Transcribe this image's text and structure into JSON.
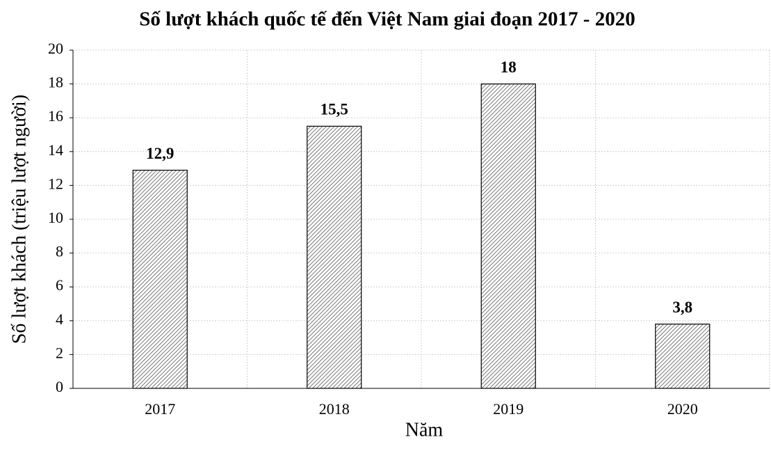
{
  "chart_data": {
    "type": "bar",
    "title": "Số lượt khách quốc tế đến Việt Nam giai đoạn 2017 - 2020",
    "x_label": "Năm",
    "y_label": "Số lượt khách (triệu lượt người)",
    "categories": [
      "2017",
      "2018",
      "2019",
      "2020"
    ],
    "values": [
      12.9,
      15.5,
      18,
      3.8
    ],
    "value_labels": [
      "12,9",
      "15,5",
      "18",
      "3,8"
    ],
    "color": "#555555",
    "ylim": [
      0,
      20
    ],
    "yticks": [
      0,
      2,
      4,
      6,
      8,
      10,
      12,
      14,
      16,
      18,
      20
    ],
    "grid": true
  }
}
